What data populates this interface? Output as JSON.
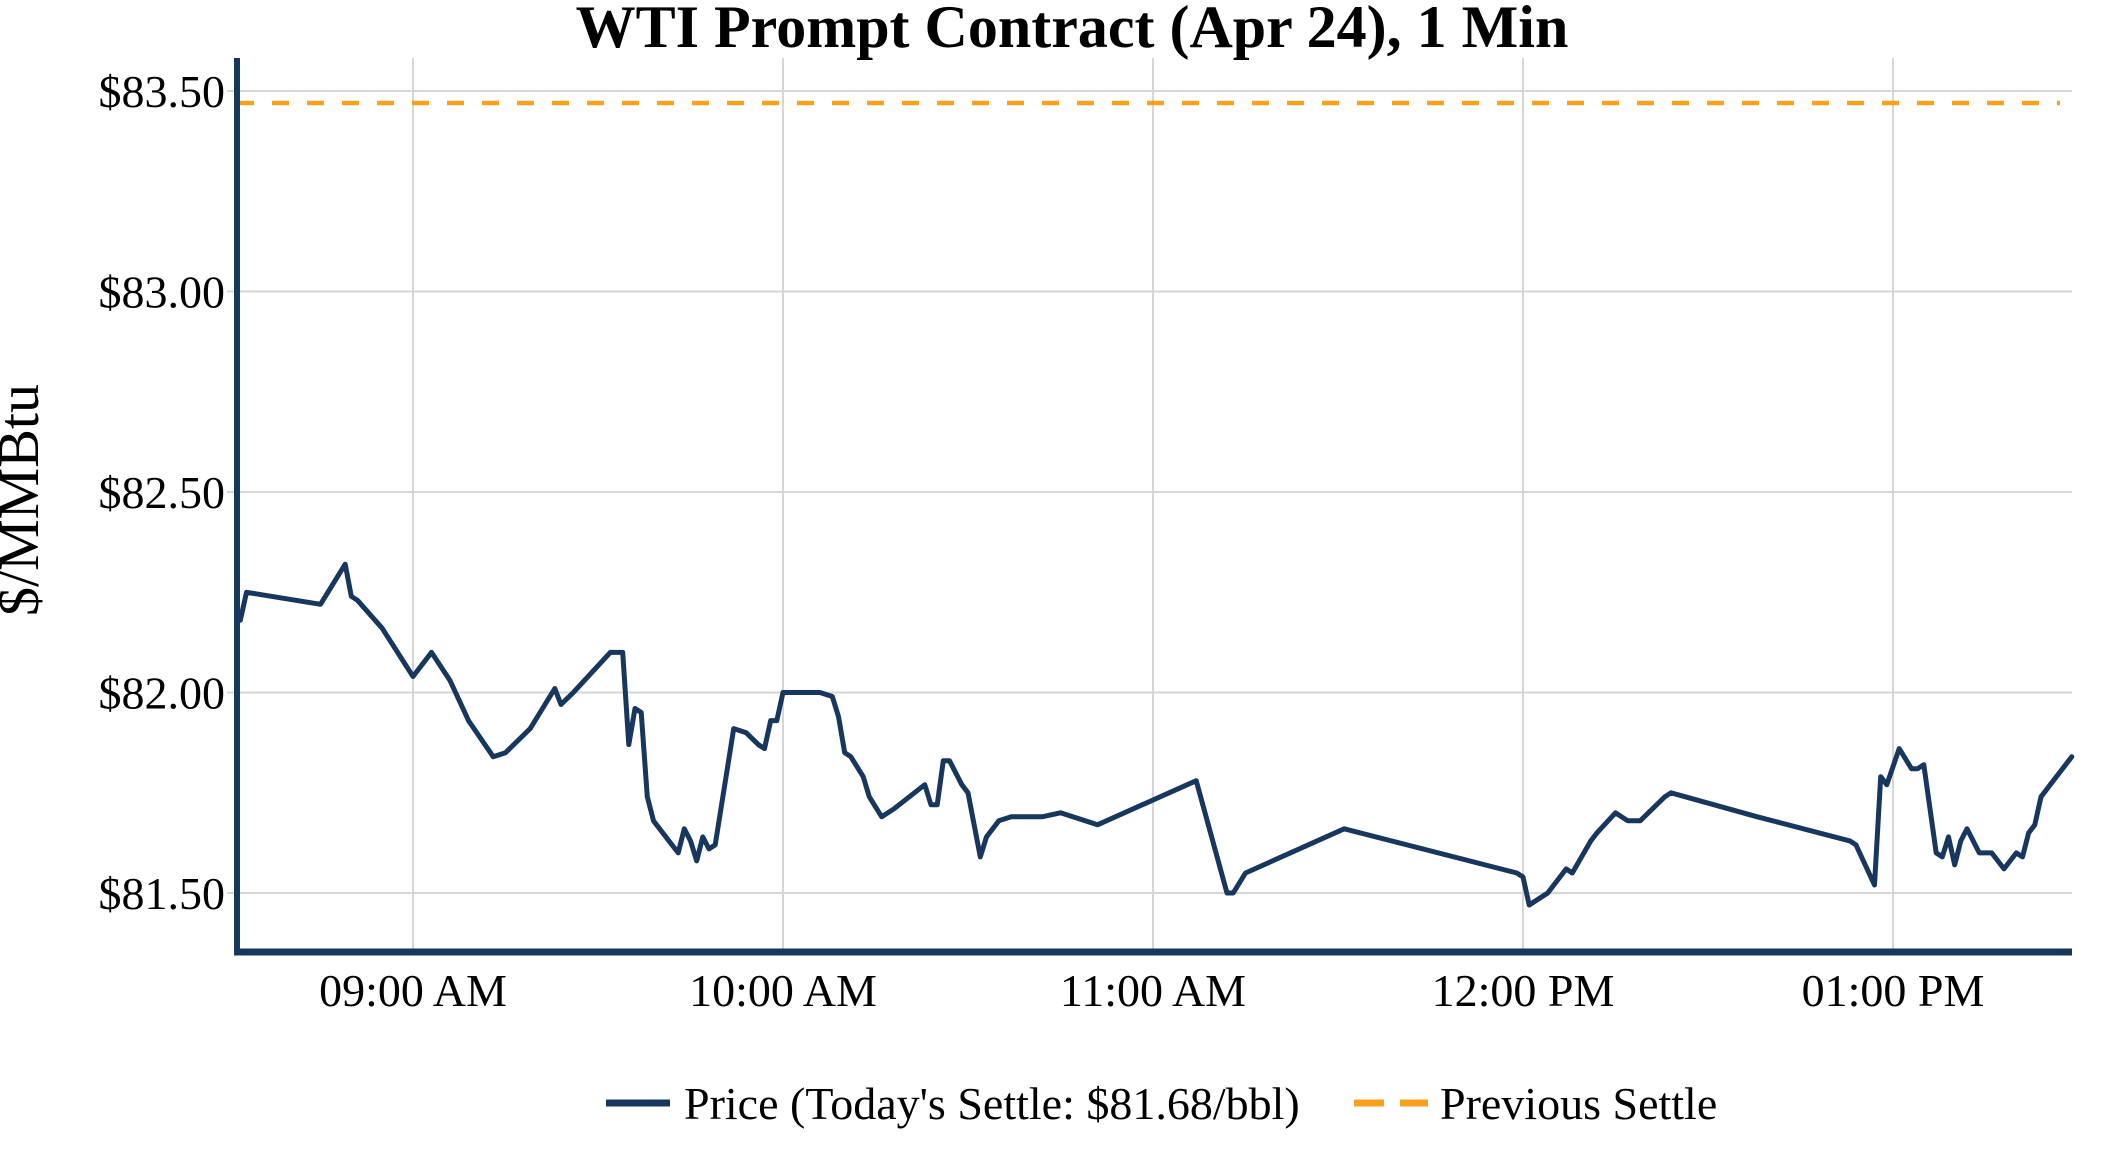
{
  "chart_data": {
    "type": "line",
    "title": "WTI Prompt Contract (Apr 24), 1 Min",
    "ylabel": "$/MMBtu",
    "xlabel": "",
    "grid": true,
    "legend_position": "bottom",
    "y_ticks": [
      {
        "label": "$83.50",
        "value": 83.5
      },
      {
        "label": "$83.00",
        "value": 83.0
      },
      {
        "label": "$82.50",
        "value": 82.5
      },
      {
        "label": "$82.00",
        "value": 82.0
      },
      {
        "label": "$81.50",
        "value": 81.5
      }
    ],
    "x_ticks": [
      {
        "label": "09:00 AM",
        "time": "09:00"
      },
      {
        "label": "10:00 AM",
        "time": "10:00"
      },
      {
        "label": "11:00 AM",
        "time": "11:00"
      },
      {
        "label": "12:00 PM",
        "time": "12:00"
      },
      {
        "label": "01:00 PM",
        "time": "13:00"
      }
    ],
    "x_range": [
      "08:31",
      "13:29"
    ],
    "ylim": [
      81.35,
      83.58
    ],
    "series": [
      {
        "name": "Price (Today's Settle: $81.68/bbl)",
        "color": "#17375E",
        "style": "solid",
        "today_settle": 81.68,
        "points": [
          [
            "08:32",
            82.18
          ],
          [
            "08:33",
            82.25
          ],
          [
            "08:45",
            82.22
          ],
          [
            "08:49",
            82.32
          ],
          [
            "08:50",
            82.24
          ],
          [
            "08:51",
            82.23
          ],
          [
            "08:55",
            82.16
          ],
          [
            "09:00",
            82.04
          ],
          [
            "09:03",
            82.1
          ],
          [
            "09:06",
            82.03
          ],
          [
            "09:09",
            81.93
          ],
          [
            "09:13",
            81.84
          ],
          [
            "09:15",
            81.85
          ],
          [
            "09:19",
            81.91
          ],
          [
            "09:23",
            82.01
          ],
          [
            "09:24",
            81.97
          ],
          [
            "09:26",
            82.0
          ],
          [
            "09:32",
            82.1
          ],
          [
            "09:34",
            82.1
          ],
          [
            "09:35",
            81.87
          ],
          [
            "09:36",
            81.96
          ],
          [
            "09:37",
            81.95
          ],
          [
            "09:38",
            81.74
          ],
          [
            "09:39",
            81.68
          ],
          [
            "09:42",
            81.62
          ],
          [
            "09:43",
            81.6
          ],
          [
            "09:44",
            81.66
          ],
          [
            "09:45",
            81.63
          ],
          [
            "09:46",
            81.58
          ],
          [
            "09:47",
            81.64
          ],
          [
            "09:48",
            81.61
          ],
          [
            "09:49",
            81.62
          ],
          [
            "09:52",
            81.91
          ],
          [
            "09:54",
            81.9
          ],
          [
            "09:56",
            81.87
          ],
          [
            "09:57",
            81.86
          ],
          [
            "09:58",
            81.93
          ],
          [
            "09:59",
            81.93
          ],
          [
            "10:00",
            82.0
          ],
          [
            "10:06",
            82.0
          ],
          [
            "10:08",
            81.99
          ],
          [
            "10:09",
            81.94
          ],
          [
            "10:10",
            81.85
          ],
          [
            "10:11",
            81.84
          ],
          [
            "10:13",
            81.79
          ],
          [
            "10:14",
            81.74
          ],
          [
            "10:16",
            81.69
          ],
          [
            "10:18",
            81.71
          ],
          [
            "10:23",
            81.77
          ],
          [
            "10:24",
            81.72
          ],
          [
            "10:25",
            81.72
          ],
          [
            "10:26",
            81.83
          ],
          [
            "10:27",
            81.83
          ],
          [
            "10:29",
            81.77
          ],
          [
            "10:30",
            81.75
          ],
          [
            "10:32",
            81.59
          ],
          [
            "10:33",
            81.64
          ],
          [
            "10:35",
            81.68
          ],
          [
            "10:37",
            81.69
          ],
          [
            "10:42",
            81.69
          ],
          [
            "10:45",
            81.7
          ],
          [
            "10:51",
            81.67
          ],
          [
            "11:07",
            81.78
          ],
          [
            "11:12",
            81.5
          ],
          [
            "11:13",
            81.5
          ],
          [
            "11:15",
            81.55
          ],
          [
            "11:31",
            81.66
          ],
          [
            "11:59",
            81.55
          ],
          [
            "12:00",
            81.54
          ],
          [
            "12:01",
            81.47
          ],
          [
            "12:04",
            81.5
          ],
          [
            "12:07",
            81.56
          ],
          [
            "12:08",
            81.55
          ],
          [
            "12:11",
            81.63
          ],
          [
            "12:12",
            81.65
          ],
          [
            "12:15",
            81.7
          ],
          [
            "12:17",
            81.68
          ],
          [
            "12:19",
            81.68
          ],
          [
            "12:23",
            81.74
          ],
          [
            "12:24",
            81.75
          ],
          [
            "12:38",
            81.69
          ],
          [
            "12:53",
            81.63
          ],
          [
            "12:54",
            81.62
          ],
          [
            "12:57",
            81.52
          ],
          [
            "12:58",
            81.79
          ],
          [
            "12:59",
            81.77
          ],
          [
            "13:01",
            81.86
          ],
          [
            "13:03",
            81.81
          ],
          [
            "13:04",
            81.81
          ],
          [
            "13:05",
            81.82
          ],
          [
            "13:07",
            81.6
          ],
          [
            "13:08",
            81.59
          ],
          [
            "13:09",
            81.64
          ],
          [
            "13:10",
            81.57
          ],
          [
            "13:11",
            81.63
          ],
          [
            "13:12",
            81.66
          ],
          [
            "13:14",
            81.6
          ],
          [
            "13:16",
            81.6
          ],
          [
            "13:18",
            81.56
          ],
          [
            "13:20",
            81.6
          ],
          [
            "13:21",
            81.59
          ],
          [
            "13:22",
            81.65
          ],
          [
            "13:23",
            81.67
          ],
          [
            "13:24",
            81.74
          ],
          [
            "13:25",
            81.76
          ],
          [
            "13:26",
            81.78
          ],
          [
            "13:27",
            81.8
          ],
          [
            "13:29",
            81.84
          ]
        ]
      },
      {
        "name": "Previous Settle",
        "color": "#F9A11E",
        "style": "dashed",
        "value": 83.47
      }
    ]
  },
  "colors": {
    "price_line": "#17375E",
    "previous_settle_line": "#F9A11E",
    "axis": "#17375E",
    "gridline": "#D6D6D6",
    "text": "#000000",
    "background": "#FFFFFF"
  },
  "legend": {
    "price_label": "Price (Today's Settle: $81.68/bbl)",
    "previous_settle_label": "Previous Settle"
  }
}
